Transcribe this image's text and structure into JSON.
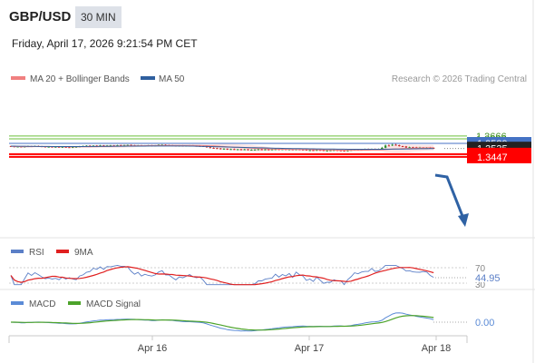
{
  "header": {
    "pair": "GBP/USD",
    "timeframe": "30 MIN",
    "datetime": "Friday, April 17, 2026 9:21:54 PM CET"
  },
  "legend": {
    "ma20_bb": "MA 20 + Bollinger Bands",
    "ma50": "MA 50"
  },
  "copyright": "Research © 2026 Trading Central",
  "colors": {
    "ma20": "#f08080",
    "bbfill": "#fbe0e0",
    "ma50": "#2f5f9e",
    "resistance": "#6bbf3a",
    "pivot": "#4472c4",
    "support": "#ff0000",
    "last": "#222222",
    "arrow": "#2f62a4",
    "up": "#2e8b2e",
    "down": "#c62828",
    "rsi": "#5b7fc7",
    "rsi_ma": "#e02020",
    "macd": "#5b8bd6",
    "macd_signal": "#4ca32a"
  },
  "chart_data": [
    {
      "type": "candlestick",
      "panel": "price",
      "levels": [
        {
          "label": "1.3666",
          "value": 1.3666,
          "kind": "resistance"
        },
        {
          "label": "1.3637",
          "value": 1.3637,
          "kind": "resistance"
        },
        {
          "label": "1.3589",
          "value": 1.3589,
          "kind": "pivot"
        },
        {
          "label": "1.3535",
          "value": 1.3535,
          "kind": "last"
        },
        {
          "label": "1.3476",
          "value": 1.3476,
          "kind": "support"
        },
        {
          "label": "1.3447",
          "value": 1.3447,
          "kind": "support"
        }
      ],
      "close": [
        1.3558,
        1.3555,
        1.3556,
        1.3552,
        1.3556,
        1.356,
        1.3558,
        1.3561,
        1.3559,
        1.3556,
        1.3553,
        1.3554,
        1.3552,
        1.3553,
        1.355,
        1.3552,
        1.3549,
        1.3548,
        1.355,
        1.3553,
        1.3557,
        1.3562,
        1.3565,
        1.3563,
        1.3566,
        1.3565,
        1.3568,
        1.3565,
        1.3567,
        1.3568,
        1.3566,
        1.357,
        1.3568,
        1.3571,
        1.3572,
        1.3569,
        1.3567,
        1.3568,
        1.3565,
        1.3567,
        1.3568,
        1.3564,
        1.3568,
        1.3575,
        1.3575,
        1.3571,
        1.3569,
        1.3567,
        1.3563,
        1.3566,
        1.3562,
        1.3566,
        1.3567,
        1.3564,
        1.3563,
        1.3561,
        1.3558,
        1.3548,
        1.3542,
        1.3539,
        1.3536,
        1.3531,
        1.3533,
        1.3525,
        1.3529,
        1.3526,
        1.3527,
        1.3522,
        1.3527,
        1.352,
        1.3523,
        1.3524,
        1.3527,
        1.3524,
        1.3526,
        1.3523,
        1.3526,
        1.3528,
        1.3525,
        1.3528,
        1.3526,
        1.3526,
        1.3523,
        1.3526,
        1.3524,
        1.3523,
        1.3518,
        1.3518,
        1.3516,
        1.352,
        1.3518,
        1.3514,
        1.3514,
        1.3517,
        1.3519,
        1.3516,
        1.3514,
        1.3508,
        1.3515,
        1.352,
        1.3524,
        1.3522,
        1.3524,
        1.353,
        1.3528,
        1.3531,
        1.3525,
        1.353,
        1.3543,
        1.3567,
        1.3566,
        1.3575,
        1.357,
        1.356,
        1.3557,
        1.3545,
        1.3549,
        1.3548,
        1.3545,
        1.3547,
        1.3544,
        1.3546,
        1.3543,
        1.3535
      ],
      "ma20": [
        1.3558,
        1.3557,
        1.3556,
        1.3555,
        1.3555,
        1.3555,
        1.3555,
        1.3556,
        1.3556,
        1.3556,
        1.3556,
        1.3556,
        1.3555,
        1.3555,
        1.3555,
        1.3555,
        1.3554,
        1.3554,
        1.3554,
        1.3553,
        1.3553,
        1.3553,
        1.3554,
        1.3554,
        1.3555,
        1.3555,
        1.3556,
        1.3556,
        1.3557,
        1.3557,
        1.3558,
        1.3559,
        1.356,
        1.3561,
        1.3562,
        1.3562,
        1.3563,
        1.3564,
        1.3564,
        1.3565,
        1.3566,
        1.3566,
        1.3566,
        1.3567,
        1.3567,
        1.3568,
        1.3568,
        1.3568,
        1.3568,
        1.3568,
        1.3568,
        1.3568,
        1.3568,
        1.3568,
        1.3567,
        1.3567,
        1.3566,
        1.3565,
        1.3563,
        1.3562,
        1.356,
        1.3558,
        1.3556,
        1.3553,
        1.3551,
        1.3549,
        1.3547,
        1.3545,
        1.3543,
        1.3541,
        1.3539,
        1.3537,
        1.3535,
        1.3534,
        1.3533,
        1.3531,
        1.353,
        1.3529,
        1.3528,
        1.3527,
        1.3526,
        1.3526,
        1.3526,
        1.3525,
        1.3525,
        1.3524,
        1.3524,
        1.3523,
        1.3522,
        1.3522,
        1.3521,
        1.3521,
        1.352,
        1.3519,
        1.3519,
        1.3518,
        1.3518,
        1.3517,
        1.3517,
        1.3517,
        1.3517,
        1.3517,
        1.3517,
        1.3518,
        1.3518,
        1.3519,
        1.352,
        1.352,
        1.3521,
        1.3523,
        1.3526,
        1.3528,
        1.3531,
        1.3532,
        1.3534,
        1.3535,
        1.3537,
        1.3538,
        1.3539,
        1.354,
        1.3541,
        1.3542,
        1.3543,
        1.3544
      ],
      "ma50": [
        1.356,
        1.356,
        1.3559,
        1.3559,
        1.3559,
        1.3558,
        1.3558,
        1.3558,
        1.3557,
        1.3557,
        1.3557,
        1.3557,
        1.3556,
        1.3556,
        1.3556,
        1.3556,
        1.3556,
        1.3556,
        1.3556,
        1.3556,
        1.3556,
        1.3556,
        1.3557,
        1.3557,
        1.3557,
        1.3557,
        1.3558,
        1.3558,
        1.3558,
        1.3558,
        1.3559,
        1.3559,
        1.3559,
        1.3559,
        1.356,
        1.356,
        1.356,
        1.356,
        1.356,
        1.356,
        1.3561,
        1.3561,
        1.3561,
        1.3561,
        1.3561,
        1.3561,
        1.3561,
        1.3561,
        1.3561,
        1.3561,
        1.3561,
        1.3561,
        1.356,
        1.356,
        1.3559,
        1.3558,
        1.3557,
        1.3557,
        1.3556,
        1.3555,
        1.3554,
        1.3553,
        1.3552,
        1.3551,
        1.355,
        1.3549,
        1.3548,
        1.3547,
        1.3546,
        1.3545,
        1.3544,
        1.3543,
        1.3542,
        1.3542,
        1.3541,
        1.354,
        1.3539,
        1.3538,
        1.3538,
        1.3537,
        1.3536,
        1.3536,
        1.3535,
        1.3534,
        1.3534,
        1.3533,
        1.3533,
        1.3532,
        1.3532,
        1.3531,
        1.3531,
        1.353,
        1.353,
        1.3529,
        1.3529,
        1.3528,
        1.3528,
        1.3528,
        1.3527,
        1.3527,
        1.3527,
        1.3527,
        1.3527,
        1.3527,
        1.3527,
        1.3527,
        1.3527,
        1.3527,
        1.3527,
        1.3528,
        1.3528,
        1.3529,
        1.3529,
        1.353,
        1.353,
        1.3531,
        1.3531,
        1.3532,
        1.3532,
        1.3533,
        1.3533,
        1.3533,
        1.3534,
        1.3534
      ]
    },
    {
      "type": "line",
      "panel": "rsi",
      "legend": [
        "RSI",
        "9MA"
      ],
      "tick_labels": [
        "70",
        "30"
      ],
      "current_label": "44.95",
      "current_value": 44.95,
      "ylim": [
        30,
        70
      ]
    },
    {
      "type": "line",
      "panel": "macd",
      "legend": [
        "MACD",
        "MACD Signal"
      ],
      "tick_labels": [
        "0.00"
      ],
      "zero": 0
    },
    {
      "type": "axis",
      "x_labels": [
        "Apr 16",
        "Apr 17",
        "Apr 18"
      ]
    }
  ]
}
